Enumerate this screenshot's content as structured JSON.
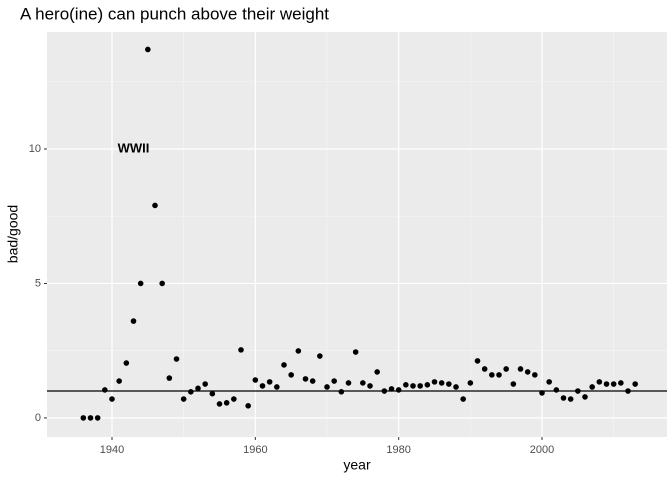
{
  "chart_data": {
    "type": "scatter",
    "title": "A hero(ine) can punch above their weight",
    "x_label": "year",
    "y_label": "bad/good",
    "x": [
      1936,
      1937,
      1938,
      1939,
      1940,
      1941,
      1942,
      1943,
      1944,
      1945,
      1946,
      1947,
      1948,
      1949,
      1950,
      1951,
      1952,
      1953,
      1954,
      1955,
      1956,
      1957,
      1958,
      1959,
      1960,
      1961,
      1962,
      1963,
      1964,
      1965,
      1966,
      1967,
      1968,
      1969,
      1970,
      1971,
      1972,
      1973,
      1974,
      1975,
      1976,
      1977,
      1978,
      1979,
      1980,
      1981,
      1982,
      1983,
      1984,
      1985,
      1986,
      1987,
      1988,
      1989,
      1990,
      1991,
      1992,
      1993,
      1994,
      1995,
      1996,
      1997,
      1998,
      1999,
      2000,
      2001,
      2002,
      2003,
      2004,
      2005,
      2006,
      2007,
      2008,
      2009,
      2010,
      2011,
      2012,
      2013
    ],
    "values": [
      0,
      0,
      0,
      1.04,
      0.7,
      1.37,
      2.04,
      3.6,
      5.0,
      13.7,
      7.9,
      5.0,
      1.48,
      2.19,
      0.7,
      0.97,
      1.1,
      1.26,
      0.9,
      0.52,
      0.56,
      0.7,
      2.53,
      0.45,
      1.41,
      1.19,
      1.34,
      1.15,
      1.97,
      1.6,
      2.49,
      1.45,
      1.37,
      2.3,
      1.15,
      1.37,
      0.97,
      1.3,
      2.45,
      1.3,
      1.19,
      1.71,
      1.0,
      1.08,
      1.04,
      1.23,
      1.19,
      1.19,
      1.23,
      1.34,
      1.3,
      1.26,
      1.15,
      0.7,
      1.3,
      2.12,
      1.82,
      1.6,
      1.6,
      1.82,
      1.26,
      1.82,
      1.71,
      1.6,
      0.93,
      1.34,
      1.04,
      0.74,
      0.7,
      1.0,
      0.78,
      1.15,
      1.34,
      1.26,
      1.26,
      1.3,
      1.0,
      1.26
    ],
    "color": "#000000",
    "hline": 1,
    "annotation": {
      "text": "WWII",
      "x": 1943,
      "y": 10
    },
    "xlim": [
      1930.93,
      2017.44
    ],
    "xticks": [
      1940,
      1960,
      1980,
      2000
    ],
    "ylim": [
      -0.71,
      14.35
    ],
    "yticks": [
      0,
      5,
      10
    ],
    "grid": true
  }
}
